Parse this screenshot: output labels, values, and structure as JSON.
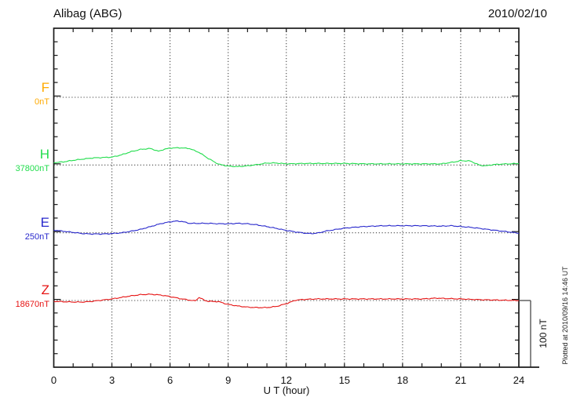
{
  "header": {
    "title": "Alibag (ABG)",
    "date": "2010/02/10"
  },
  "xaxis": {
    "label": "U T (hour)",
    "tick_labels": [
      "0",
      "3",
      "6",
      "9",
      "12",
      "15",
      "18",
      "21",
      "24"
    ]
  },
  "scale_bar": {
    "label": "100 nT",
    "span_nT": 100
  },
  "footer_note": "Plotted at 2010/09/16 14:46 UT",
  "colors": {
    "frame": "#1a1a1a",
    "grid": "#444444",
    "text": "#111111",
    "F": "#FFAA00",
    "H": "#22DD4D",
    "E": "#2828CC",
    "Z": "#E61414"
  },
  "chart_data": {
    "type": "line",
    "title": "Alibag (ABG) magnetogram 2010/02/10",
    "xlabel": "U T (hour)",
    "x_range": [
      0,
      24
    ],
    "x_tick_interval_hours": 1,
    "x_grid_interval_hours": 3,
    "y_division_nT": 100,
    "y_minor_tick_nT": 20,
    "grid": "dotted",
    "legend_position": "left-margin",
    "series": [
      {
        "name": "F",
        "baseline_label": "0nT",
        "baseline_value_nT": 0,
        "color": "#FFAA00",
        "points": []
      },
      {
        "name": "H",
        "baseline_label": "37800nT",
        "baseline_value_nT": 37800,
        "color": "#22DD4D",
        "points": [
          [
            0,
            3.5
          ],
          [
            0.5,
            4.6
          ],
          [
            1,
            6.9
          ],
          [
            1.5,
            8.7
          ],
          [
            2,
            10.4
          ],
          [
            2.5,
            11
          ],
          [
            3,
            11.6
          ],
          [
            3.5,
            15
          ],
          [
            4,
            19.7
          ],
          [
            4.5,
            23.1
          ],
          [
            5,
            24.3
          ],
          [
            5.4,
            20.2
          ],
          [
            5.7,
            23.1
          ],
          [
            6,
            24.9
          ],
          [
            6.5,
            25.4
          ],
          [
            7,
            24.3
          ],
          [
            7.5,
            18.5
          ],
          [
            8,
            9.2
          ],
          [
            8.5,
            1.2
          ],
          [
            9,
            -1.7
          ],
          [
            9.5,
            -2.3
          ],
          [
            10,
            -1.2
          ],
          [
            10.5,
            0.6
          ],
          [
            11,
            2.9
          ],
          [
            11.5,
            2.9
          ],
          [
            12,
            1.7
          ],
          [
            13,
            2.3
          ],
          [
            14,
            2.3
          ],
          [
            15,
            2.3
          ],
          [
            16,
            1.7
          ],
          [
            17,
            1.7
          ],
          [
            18,
            1.7
          ],
          [
            19,
            1.7
          ],
          [
            20,
            1.7
          ],
          [
            20.7,
            4.6
          ],
          [
            21,
            6.4
          ],
          [
            21.5,
            5.8
          ],
          [
            22,
            -0.6
          ],
          [
            22.3,
            -1.2
          ],
          [
            22.7,
            0.6
          ],
          [
            23,
            1.2
          ],
          [
            23.5,
            1.7
          ],
          [
            24,
            2.3
          ]
        ]
      },
      {
        "name": "E",
        "baseline_label": "250nT",
        "baseline_value_nT": 250,
        "color": "#2828CC",
        "points": [
          [
            0,
            4
          ],
          [
            0.5,
            2.3
          ],
          [
            1,
            0.6
          ],
          [
            1.5,
            -1.2
          ],
          [
            2,
            -1.7
          ],
          [
            2.5,
            -1.7
          ],
          [
            3,
            -1.2
          ],
          [
            3.5,
            0
          ],
          [
            4,
            2.3
          ],
          [
            4.5,
            5.2
          ],
          [
            5,
            9.2
          ],
          [
            5.5,
            13.3
          ],
          [
            6,
            16.2
          ],
          [
            6.3,
            17.3
          ],
          [
            6.6,
            16.8
          ],
          [
            7,
            13.9
          ],
          [
            7.5,
            13.9
          ],
          [
            8,
            13.9
          ],
          [
            8.5,
            13.3
          ],
          [
            9,
            13.3
          ],
          [
            9.5,
            13.9
          ],
          [
            10,
            13.3
          ],
          [
            10.5,
            11.6
          ],
          [
            11,
            9.2
          ],
          [
            11.5,
            6.4
          ],
          [
            12,
            3.5
          ],
          [
            12.5,
            1.2
          ],
          [
            13,
            -0.6
          ],
          [
            13.3,
            -1.2
          ],
          [
            13.7,
            0
          ],
          [
            14,
            2.3
          ],
          [
            14.5,
            4.6
          ],
          [
            15,
            6.9
          ],
          [
            15.5,
            8.1
          ],
          [
            16,
            9.2
          ],
          [
            16.5,
            9.8
          ],
          [
            17,
            10.4
          ],
          [
            18,
            10.4
          ],
          [
            19,
            10.4
          ],
          [
            20,
            9.8
          ],
          [
            20.5,
            10.4
          ],
          [
            21,
            9.2
          ],
          [
            21.5,
            8.1
          ],
          [
            22,
            6.4
          ],
          [
            22.5,
            4.6
          ],
          [
            23,
            2.9
          ],
          [
            23.5,
            1.2
          ],
          [
            24,
            -0.6
          ]
        ]
      },
      {
        "name": "Z",
        "baseline_label": "18670nT",
        "baseline_value_nT": 18670,
        "color": "#E61414",
        "points": [
          [
            0,
            -1.2
          ],
          [
            0.5,
            -1.7
          ],
          [
            1,
            -2.3
          ],
          [
            1.5,
            -2.3
          ],
          [
            2,
            -1.2
          ],
          [
            2.5,
            0.6
          ],
          [
            3,
            2.3
          ],
          [
            3.5,
            4.6
          ],
          [
            4,
            6.9
          ],
          [
            4.5,
            8.7
          ],
          [
            5,
            9.2
          ],
          [
            5.5,
            8.1
          ],
          [
            6,
            5.8
          ],
          [
            6.5,
            2.9
          ],
          [
            7,
            0.6
          ],
          [
            7.3,
            -0.6
          ],
          [
            7.5,
            4.6
          ],
          [
            7.8,
            0
          ],
          [
            8,
            -1.2
          ],
          [
            8.5,
            -1.7
          ],
          [
            9,
            -5.8
          ],
          [
            9.5,
            -8.1
          ],
          [
            10,
            -9.8
          ],
          [
            10.5,
            -10.4
          ],
          [
            11,
            -10.4
          ],
          [
            11.5,
            -8.7
          ],
          [
            12,
            -4.6
          ],
          [
            12.5,
            0.6
          ],
          [
            13,
            1.7
          ],
          [
            13.5,
            2.3
          ],
          [
            14,
            2.3
          ],
          [
            15,
            2.3
          ],
          [
            16,
            2.3
          ],
          [
            17,
            2.3
          ],
          [
            18,
            2.3
          ],
          [
            19,
            2.3
          ],
          [
            19.8,
            3.5
          ],
          [
            20.2,
            2.9
          ],
          [
            21,
            2.3
          ],
          [
            22,
            1.2
          ],
          [
            23,
            0.6
          ],
          [
            24,
            0
          ]
        ]
      }
    ]
  }
}
